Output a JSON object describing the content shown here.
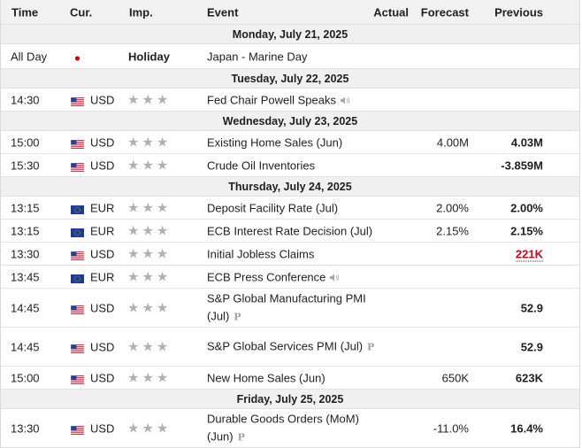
{
  "headers": {
    "time": "Time",
    "currency": "Cur.",
    "importance": "Imp.",
    "event": "Event",
    "actual": "Actual",
    "forecast": "Forecast",
    "previous": "Previous"
  },
  "days": [
    {
      "label": "Monday, July 21, 2025",
      "events": [
        {
          "time": "All Day",
          "flag": "japan-flag-icon",
          "currency": "",
          "importance": "Holiday",
          "event": "Japan - Marine Day",
          "actual": "",
          "forecast": "",
          "previous": ""
        }
      ]
    },
    {
      "label": "Tuesday, July 22, 2025",
      "events": [
        {
          "time": "14:30",
          "flag": "us-flag-icon",
          "currency": "USD",
          "importance_stars": 3,
          "event": "Fed Chair Powell Speaks",
          "speech": true,
          "actual": "",
          "forecast": "",
          "previous": ""
        }
      ]
    },
    {
      "label": "Wednesday, July 23, 2025",
      "events": [
        {
          "time": "15:00",
          "flag": "us-flag-icon",
          "currency": "USD",
          "importance_stars": 3,
          "event": "Existing Home Sales (Jun)",
          "actual": "",
          "forecast": "4.00M",
          "previous": "4.03M"
        },
        {
          "time": "15:30",
          "flag": "us-flag-icon",
          "currency": "USD",
          "importance_stars": 3,
          "event": "Crude Oil Inventories",
          "actual": "",
          "forecast": "",
          "previous": "-3.859M"
        }
      ]
    },
    {
      "label": "Thursday, July 24, 2025",
      "events": [
        {
          "time": "13:15",
          "flag": "eu-flag-icon",
          "currency": "EUR",
          "importance_stars": 3,
          "event": "Deposit Facility Rate (Jul)",
          "actual": "",
          "forecast": "2.00%",
          "previous": "2.00%"
        },
        {
          "time": "13:15",
          "flag": "eu-flag-icon",
          "currency": "EUR",
          "importance_stars": 3,
          "event": "ECB Interest Rate Decision (Jul)",
          "actual": "",
          "forecast": "2.15%",
          "previous": "2.15%"
        },
        {
          "time": "13:30",
          "flag": "us-flag-icon",
          "currency": "USD",
          "importance_stars": 3,
          "event": "Initial Jobless Claims",
          "actual": "",
          "forecast": "",
          "previous": "221K",
          "previous_color": "#d0021b"
        },
        {
          "time": "13:45",
          "flag": "eu-flag-icon",
          "currency": "EUR",
          "importance_stars": 3,
          "event": "ECB Press Conference",
          "speech": true,
          "actual": "",
          "forecast": "",
          "previous": ""
        },
        {
          "time": "14:45",
          "flag": "us-flag-icon",
          "currency": "USD",
          "importance_stars": 3,
          "event": "S&P Global Manufacturing PMI (Jul)",
          "preliminary": true,
          "actual": "",
          "forecast": "",
          "previous": "52.9"
        },
        {
          "time": "14:45",
          "flag": "us-flag-icon",
          "currency": "USD",
          "importance_stars": 3,
          "event": "S&P Global Services PMI (Jul)",
          "preliminary": true,
          "actual": "",
          "forecast": "",
          "previous": "52.9"
        },
        {
          "time": "15:00",
          "flag": "us-flag-icon",
          "currency": "USD",
          "importance_stars": 3,
          "event": "New Home Sales (Jun)",
          "actual": "",
          "forecast": "650K",
          "previous": "623K"
        }
      ]
    },
    {
      "label": "Friday, July 25, 2025",
      "events": [
        {
          "time": "13:30",
          "flag": "us-flag-icon",
          "currency": "USD",
          "importance_stars": 3,
          "event": "Durable Goods Orders (MoM) (Jun)",
          "preliminary": true,
          "actual": "",
          "forecast": "-11.0%",
          "previous": "16.4%"
        }
      ]
    }
  ]
}
